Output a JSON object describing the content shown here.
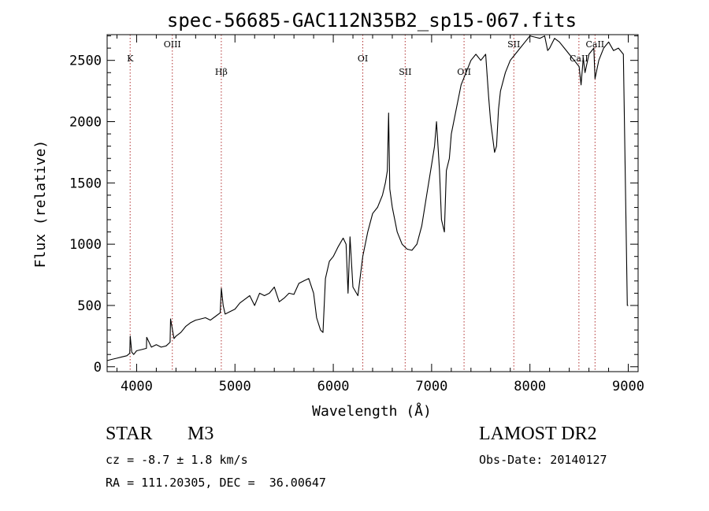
{
  "chart_data": {
    "type": "line",
    "title": "spec-56685-GAC112N35B2_sp15-067.fits",
    "xlabel": "Wavelength (Å)",
    "ylabel": "Flux (relative)",
    "xlim": [
      3700,
      9100
    ],
    "ylim": [
      -40,
      2710
    ],
    "xticks": [
      4000,
      5000,
      6000,
      7000,
      8000,
      9000
    ],
    "yticks": [
      0,
      500,
      1000,
      1500,
      2000,
      2500
    ],
    "grid": false,
    "series": [
      {
        "x": [
          3700,
          3750,
          3800,
          3850,
          3900,
          3930,
          3935,
          3950,
          3970,
          4000,
          4050,
          4100,
          4102,
          4150,
          4200,
          4250,
          4300,
          4340,
          4345,
          4380,
          4400,
          4450,
          4500,
          4550,
          4600,
          4650,
          4700,
          4750,
          4800,
          4850,
          4862,
          4880,
          4900,
          4950,
          5000,
          5050,
          5100,
          5150,
          5200,
          5250,
          5300,
          5350,
          5400,
          5450,
          5500,
          5550,
          5600,
          5650,
          5700,
          5750,
          5800,
          5830,
          5870,
          5895,
          5920,
          5960,
          6000,
          6050,
          6100,
          6130,
          6150,
          6170,
          6200,
          6250,
          6300,
          6350,
          6400,
          6450,
          6500,
          6530,
          6550,
          6563,
          6575,
          6600,
          6650,
          6700,
          6750,
          6800,
          6850,
          6900,
          6950,
          7000,
          7030,
          7050,
          7080,
          7100,
          7130,
          7150,
          7180,
          7200,
          7250,
          7300,
          7350,
          7400,
          7450,
          7500,
          7550,
          7580,
          7600,
          7640,
          7660,
          7680,
          7700,
          7750,
          7800,
          7850,
          7900,
          7950,
          8000,
          8050,
          8100,
          8150,
          8180,
          8200,
          8250,
          8300,
          8350,
          8400,
          8450,
          8500,
          8520,
          8542,
          8560,
          8600,
          8650,
          8662,
          8700,
          8750,
          8800,
          8850,
          8900,
          8950,
          8990,
          9000
        ],
        "y": [
          50,
          60,
          70,
          80,
          90,
          110,
          250,
          120,
          100,
          130,
          140,
          150,
          240,
          160,
          180,
          160,
          170,
          200,
          390,
          230,
          250,
          280,
          330,
          360,
          380,
          390,
          400,
          380,
          410,
          440,
          640,
          500,
          430,
          450,
          470,
          520,
          550,
          580,
          500,
          600,
          580,
          600,
          650,
          530,
          560,
          600,
          590,
          680,
          700,
          720,
          600,
          400,
          300,
          280,
          720,
          860,
          900,
          980,
          1050,
          1000,
          600,
          1060,
          650,
          580,
          900,
          1100,
          1250,
          1300,
          1400,
          1500,
          1600,
          2070,
          1450,
          1300,
          1100,
          1000,
          960,
          950,
          1000,
          1150,
          1400,
          1650,
          1800,
          2000,
          1600,
          1200,
          1100,
          1600,
          1700,
          1900,
          2100,
          2300,
          2400,
          2500,
          2550,
          2500,
          2550,
          2200,
          2000,
          1750,
          1800,
          2100,
          2250,
          2400,
          2500,
          2550,
          2600,
          2650,
          2700,
          2690,
          2680,
          2700,
          2580,
          2600,
          2680,
          2650,
          2600,
          2550,
          2500,
          2450,
          2300,
          2520,
          2400,
          2550,
          2600,
          2350,
          2500,
          2600,
          2650,
          2580,
          2600,
          2550,
          500,
          500
        ]
      }
    ],
    "emission_lines": [
      {
        "label": "K",
        "x": 3934,
        "level": "high"
      },
      {
        "label": "OIII",
        "x": 4363,
        "level": "top"
      },
      {
        "label": "Hβ",
        "x": 4861,
        "level": "low"
      },
      {
        "label": "OI",
        "x": 6300,
        "level": "high"
      },
      {
        "label": "SII",
        "x": 6731,
        "level": "low"
      },
      {
        "label": "OII",
        "x": 7330,
        "level": "low"
      },
      {
        "label": "SII",
        "x": 7836,
        "level": "top"
      },
      {
        "label": "CaII",
        "x": 8498,
        "level": "high"
      },
      {
        "label": "CaII",
        "x": 8662,
        "level": "top"
      }
    ]
  },
  "info": {
    "object_class": "STAR",
    "subclass": "M3",
    "survey": "LAMOST DR2",
    "redshift": "cz = -8.7 ± 1.8 km/s",
    "obs_date": "Obs-Date: 20140127",
    "coords": "RA = 111.20305, DEC =  36.00647"
  }
}
